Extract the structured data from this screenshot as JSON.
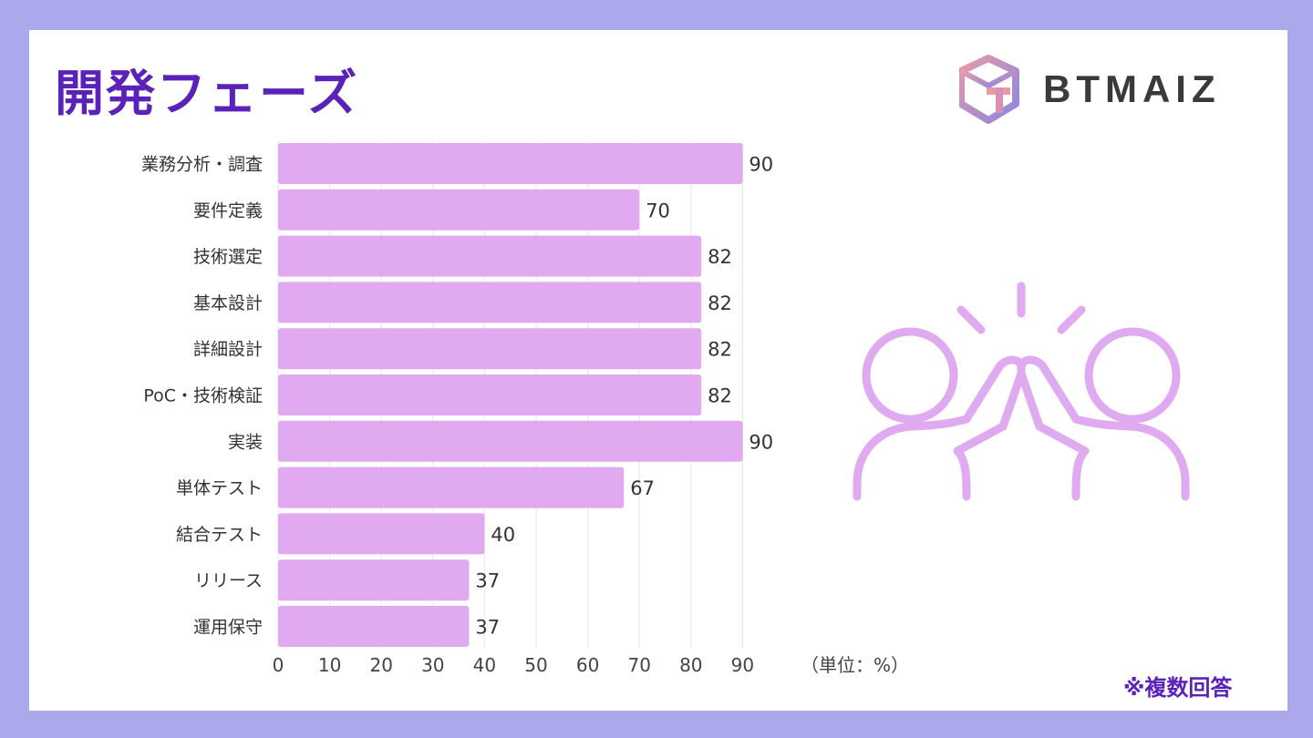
{
  "header": {
    "title": "開発フェーズ"
  },
  "logo": {
    "text": "BTMAIZ"
  },
  "footnote": "※複数回答",
  "colors": {
    "bar": "#e1aaf0",
    "accent": "#5a22b8",
    "background": "#aba9ec",
    "illustration": "#e0aaf0"
  },
  "illustration": {
    "icon": "high-five-icon"
  },
  "chart_data": {
    "type": "bar",
    "orientation": "horizontal",
    "categories": [
      "業務分析・調査",
      "要件定義",
      "技術選定",
      "基本設計",
      "詳細設計",
      "PoC・技術検証",
      "実装",
      "単体テスト",
      "結合テスト",
      "リリース",
      "運用保守"
    ],
    "values": [
      90,
      70,
      82,
      82,
      82,
      82,
      90,
      67,
      40,
      37,
      37
    ],
    "xlim": [
      0,
      90
    ],
    "xticks": [
      0,
      10,
      20,
      30,
      40,
      50,
      60,
      70,
      80,
      90
    ],
    "unit_label": "（単位：%）",
    "grid": true
  }
}
